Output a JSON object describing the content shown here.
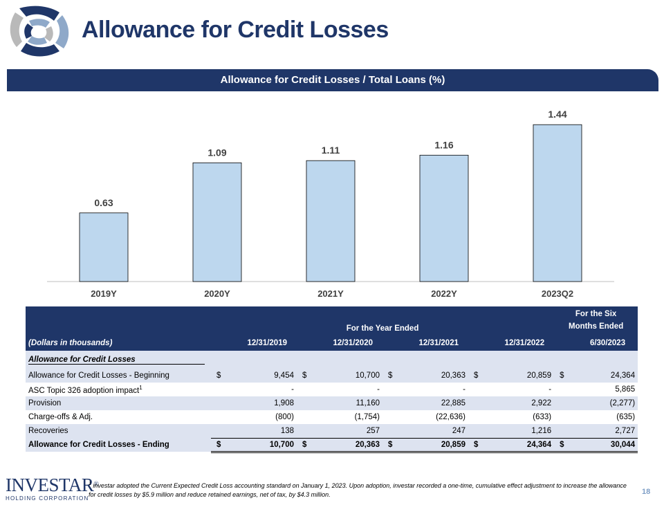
{
  "header": {
    "title": "Allowance for Credit Losses"
  },
  "banner": {
    "text": "Allowance for Credit Losses / Total Loans (%)"
  },
  "chart_data": {
    "type": "bar",
    "categories": [
      "2019Y",
      "2020Y",
      "2021Y",
      "2022Y",
      "2023Q2"
    ],
    "values": [
      0.63,
      1.09,
      1.11,
      1.16,
      1.44
    ],
    "labels": [
      "0.63",
      "1.09",
      "1.11",
      "1.16",
      "1.44"
    ],
    "title": "Allowance for Credit Losses / Total Loans (%)",
    "ylim": [
      0,
      1.6
    ],
    "bar_color": "#bdd7ee",
    "grid": false
  },
  "table": {
    "group_header_year": "For the Year Ended",
    "group_header_six_line1": "For the Six",
    "group_header_six_line2": "Months Ended",
    "units_label": "(Dollars in thousands)",
    "columns": [
      "12/31/2019",
      "12/31/2020",
      "12/31/2021",
      "12/31/2022",
      "6/30/2023"
    ],
    "section_title": "Allowance for Credit Losses",
    "rows": [
      {
        "label": "Allowance for Credit Losses - Beginning",
        "dollar": "$",
        "values": [
          "9,454",
          "10,700",
          "20,363",
          "20,859",
          "24,364"
        ]
      },
      {
        "label": "ASC Topic 326 adoption impact",
        "sup": "1",
        "dollar": "",
        "values": [
          "-",
          "-",
          "-",
          "-",
          "5,865"
        ]
      },
      {
        "label": "Provision",
        "dollar": "",
        "values": [
          "1,908",
          "11,160",
          "22,885",
          "2,922",
          "(2,277)"
        ]
      },
      {
        "label": "Charge-offs & Adj.",
        "dollar": "",
        "values": [
          "(800)",
          "(1,754)",
          "(22,636)",
          "(633)",
          "(635)"
        ]
      },
      {
        "label": "Recoveries",
        "dollar": "",
        "values": [
          "138",
          "257",
          "247",
          "1,216",
          "2,727"
        ]
      }
    ],
    "total_row": {
      "label": "Allowance for Credit Losses - Ending",
      "dollar": "$",
      "values": [
        "10,700",
        "20,363",
        "20,859",
        "24,364",
        "30,044"
      ]
    }
  },
  "footer": {
    "logo_main": "INVESTAR",
    "logo_registered": "®",
    "logo_sub": "HOLDING CORPORATION",
    "footnote_mark": "1",
    "footnote": "investar adopted the Current Expected Credit Loss accounting standard on January 1, 2023. Upon adoption, investar recorded a one-time, cumulative effect adjustment to increase the allowance for credit losses by $5.9 million and reduce retained earnings, net of tax, by $4.3 million.",
    "page_number": "18"
  },
  "colors": {
    "navy": "#1f3668",
    "band": "#dde3f0",
    "bar": "#bdd7ee",
    "page_num": "#7f9fc7"
  }
}
